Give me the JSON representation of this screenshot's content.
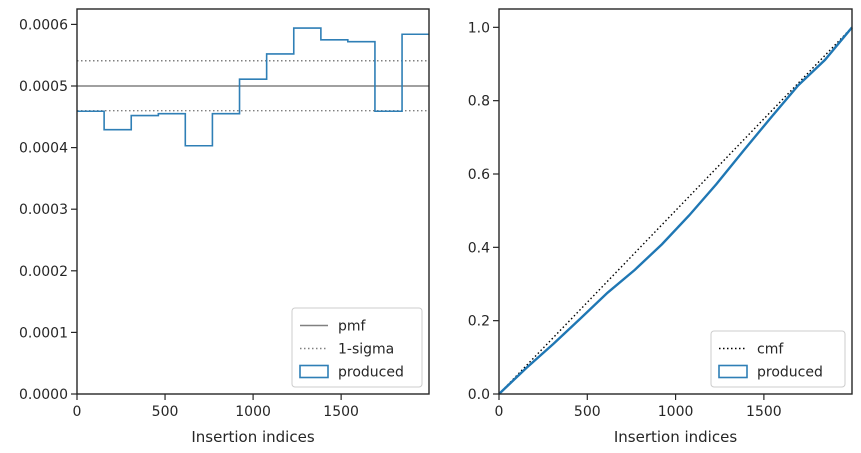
{
  "chart_data": [
    {
      "type": "histogram",
      "xlabel": "Insertion indices",
      "ylabel": "",
      "xlim": [
        0,
        1999
      ],
      "ylim": [
        0,
        0.000625
      ],
      "x_ticks": [
        0,
        500,
        1000,
        1500
      ],
      "x_tick_labels": [
        "0",
        "500",
        "1000",
        "1500"
      ],
      "y_ticks": [
        0,
        0.0001,
        0.0002,
        0.0003,
        0.0004,
        0.0005,
        0.0006
      ],
      "y_tick_labels": [
        "0.0000",
        "0.0001",
        "0.0002",
        "0.0003",
        "0.0004",
        "0.0005",
        "0.0006"
      ],
      "grid": false,
      "legend_position": "lower-right",
      "reference_lines": {
        "pmf": 0.0005,
        "sigma_upper": 0.000541,
        "sigma_lower": 0.00046
      },
      "bin_edges": [
        0,
        154,
        308,
        462,
        615,
        769,
        923,
        1077,
        1231,
        1385,
        1538,
        1692,
        1846,
        1999
      ],
      "bin_values": [
        0.000459,
        0.000429,
        0.000452,
        0.000455,
        0.000403,
        0.000455,
        0.000511,
        0.000552,
        0.000594,
        0.000575,
        0.000572,
        0.000459,
        0.000584
      ],
      "legend": [
        {
          "label": "pmf",
          "style": "solid",
          "color": "#808080"
        },
        {
          "label": "1-sigma",
          "style": "dotted",
          "color": "#808080"
        },
        {
          "label": "produced",
          "style": "patch",
          "color": "#2f7fb6"
        }
      ]
    },
    {
      "type": "line",
      "xlabel": "Insertion indices",
      "ylabel": "",
      "xlim": [
        0,
        1999
      ],
      "ylim": [
        0,
        1.05
      ],
      "x_ticks": [
        0,
        500,
        1000,
        1500
      ],
      "x_tick_labels": [
        "0",
        "500",
        "1000",
        "1500"
      ],
      "y_ticks": [
        0,
        0.2,
        0.4,
        0.6,
        0.8,
        1.0
      ],
      "y_tick_labels": [
        "0.0",
        "0.2",
        "0.4",
        "0.6",
        "0.8",
        "1.0"
      ],
      "grid": false,
      "legend_position": "lower-right",
      "series": [
        {
          "name": "cmf",
          "style": "dotted",
          "color": "#000000",
          "x": [
            0,
            1999
          ],
          "y": [
            0,
            1.0
          ]
        },
        {
          "name": "produced",
          "style": "solid",
          "color": "#1f77b4",
          "x": [
            0,
            154,
            308,
            462,
            615,
            769,
            923,
            1077,
            1231,
            1385,
            1538,
            1692,
            1846,
            1999
          ],
          "y": [
            0,
            0.0707,
            0.1368,
            0.2064,
            0.2764,
            0.3385,
            0.4085,
            0.4872,
            0.5723,
            0.6637,
            0.7527,
            0.8405,
            0.9112,
            1.0
          ]
        }
      ],
      "legend": [
        {
          "label": "cmf",
          "style": "dotted",
          "color": "#000000"
        },
        {
          "label": "produced",
          "style": "patch",
          "color": "#2f7fb6"
        }
      ]
    }
  ]
}
